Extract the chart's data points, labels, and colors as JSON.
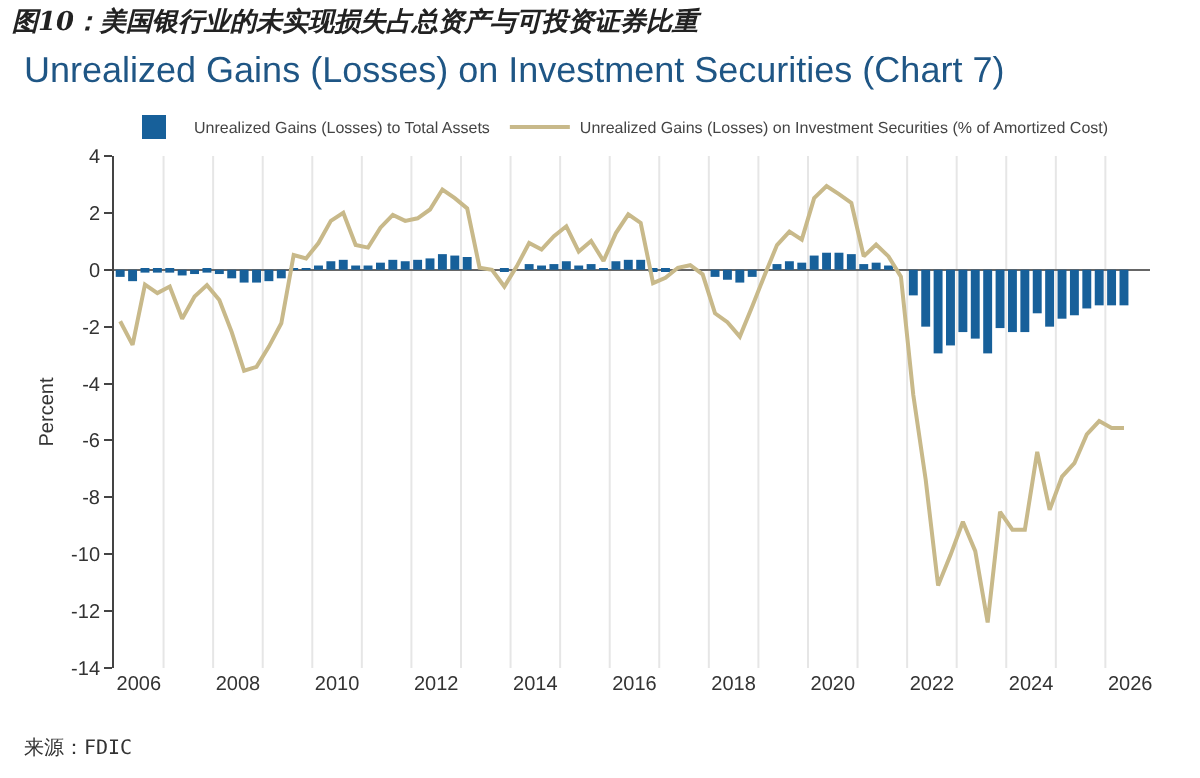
{
  "chart_data": {
    "type": "bar",
    "title": "图10：美国银行业的未实现损失占总资产与可投资证券比重",
    "subtitle": "Unrealized Gains (Losses) on Investment Securities (Chart 7)",
    "ylabel": "Percent",
    "x": [
      2005.625,
      2005.875,
      2006.125,
      2006.375,
      2006.625,
      2006.875,
      2007.125,
      2007.375,
      2007.625,
      2007.875,
      2008.125,
      2008.375,
      2008.625,
      2008.875,
      2009.125,
      2009.375,
      2009.625,
      2009.875,
      2010.125,
      2010.375,
      2010.625,
      2010.875,
      2011.125,
      2011.375,
      2011.625,
      2011.875,
      2012.125,
      2012.375,
      2012.625,
      2012.875,
      2013.125,
      2013.375,
      2013.625,
      2013.875,
      2014.125,
      2014.375,
      2014.625,
      2014.875,
      2015.125,
      2015.375,
      2015.625,
      2015.875,
      2016.125,
      2016.375,
      2016.625,
      2016.875,
      2017.125,
      2017.375,
      2017.625,
      2017.875,
      2018.125,
      2018.375,
      2018.625,
      2018.875,
      2019.125,
      2019.375,
      2019.625,
      2019.875,
      2020.125,
      2020.375,
      2020.625,
      2020.875,
      2021.125,
      2021.375,
      2021.625,
      2021.875,
      2022.125,
      2022.375,
      2022.625,
      2022.875,
      2023.125,
      2023.375,
      2023.625,
      2023.875,
      2024.125,
      2024.375,
      2024.625,
      2024.875,
      2025.125,
      2025.375,
      2025.625,
      2025.875
    ],
    "series": [
      {
        "name": "Unrealized Gains (Losses) to Total Assets",
        "color": "#17609a",
        "values": [
          -0.25,
          -0.4,
          -0.1,
          -0.1,
          -0.1,
          -0.2,
          -0.15,
          -0.1,
          -0.15,
          -0.3,
          -0.45,
          -0.45,
          -0.4,
          -0.3,
          0.05,
          0.05,
          0.15,
          0.3,
          0.35,
          0.15,
          0.15,
          0.25,
          0.35,
          0.3,
          0.35,
          0.4,
          0.55,
          0.5,
          0.45,
          0.0,
          0.0,
          -0.05,
          0.0,
          0.2,
          0.15,
          0.2,
          0.3,
          0.15,
          0.2,
          0.05,
          0.3,
          0.35,
          0.35,
          -0.05,
          -0.05,
          0.0,
          0.0,
          0.0,
          -0.25,
          -0.35,
          -0.45,
          -0.25,
          0.0,
          0.2,
          0.3,
          0.25,
          0.5,
          0.6,
          0.6,
          0.55,
          0.2,
          0.25,
          0.15,
          0.0,
          -0.9,
          -2.0,
          -2.94,
          -2.66,
          -2.19,
          -2.42,
          -2.94,
          -2.05,
          -2.19,
          -2.19,
          -1.53,
          -2.0,
          -1.72,
          -1.6,
          -1.36,
          -1.25,
          -1.25,
          -1.25
        ]
      },
      {
        "name": "Unrealized Gains (Losses) on Investment Securities (% of Amortized Cost)",
        "type": "line",
        "color": "#c8b98a",
        "values": [
          -1.81,
          -2.64,
          -0.52,
          -0.82,
          -0.59,
          -1.72,
          -0.94,
          -0.54,
          -1.06,
          -2.19,
          -3.55,
          -3.41,
          -2.7,
          -1.88,
          0.52,
          0.4,
          0.94,
          1.72,
          2.0,
          0.87,
          0.78,
          1.48,
          1.93,
          1.72,
          1.81,
          2.12,
          2.82,
          2.52,
          2.16,
          0.07,
          0.0,
          -0.59,
          0.12,
          0.94,
          0.71,
          1.18,
          1.53,
          0.64,
          1.01,
          0.31,
          1.29,
          1.95,
          1.65,
          -0.47,
          -0.28,
          0.07,
          0.16,
          -0.16,
          -1.53,
          -1.84,
          -2.35,
          -1.29,
          -0.19,
          0.87,
          1.34,
          1.06,
          2.52,
          2.94,
          2.66,
          2.35,
          0.47,
          0.89,
          0.47,
          -0.24,
          -4.4,
          -7.38,
          -11.1,
          -10.03,
          -8.86,
          -9.89,
          -12.4,
          -8.51,
          -9.14,
          -9.14,
          -6.4,
          -8.44,
          -7.27,
          -6.8,
          -5.79,
          -5.32,
          -5.56,
          -5.56
        ]
      }
    ],
    "xlim": [
      2005.5,
      2026.4
    ],
    "xticks": [
      2006,
      {
        "value": 2006.5,
        "label": null
      },
      {
        "value": 2007.5,
        "label": null
      },
      2008,
      {
        "value": 2008.5,
        "label": null
      },
      {
        "value": 2009.5,
        "label": null
      },
      2010,
      {
        "value": 2010.5,
        "label": null
      },
      {
        "value": 2011.5,
        "label": null
      },
      2012,
      {
        "value": 2012.5,
        "label": null
      },
      {
        "value": 2013.5,
        "label": null
      },
      2014,
      {
        "value": 2014.5,
        "label": null
      },
      {
        "value": 2015.5,
        "label": null
      },
      2016,
      {
        "value": 2016.5,
        "label": null
      },
      {
        "value": 2017.5,
        "label": null
      },
      2018,
      {
        "value": 2018.5,
        "label": null
      },
      {
        "value": 2019.5,
        "label": null
      },
      2020,
      {
        "value": 2020.5,
        "label": null
      },
      {
        "value": 2021.5,
        "label": null
      },
      2022,
      {
        "value": 2022.5,
        "label": null
      },
      {
        "value": 2023.5,
        "label": null
      },
      2024,
      {
        "value": 2024.5,
        "label": null
      },
      {
        "value": 2025.5,
        "label": null
      },
      2026
    ],
    "ylim": [
      -14,
      4
    ],
    "yticks": [
      4,
      2,
      0,
      -2,
      -4,
      -6,
      -8,
      -10,
      -12,
      -14
    ],
    "grid": "x",
    "legend": "top left",
    "annotations": [
      "来源：FDIC"
    ]
  }
}
